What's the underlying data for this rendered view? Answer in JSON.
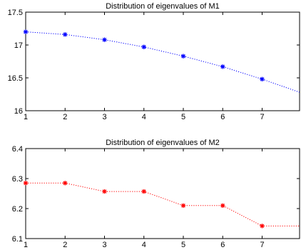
{
  "chart_data": [
    {
      "type": "line",
      "title": "Distribution of eigenvalues of M1",
      "xlabel": "",
      "ylabel": "",
      "xlim": [
        1,
        7.95
      ],
      "ylim": [
        16,
        17.5
      ],
      "x_ticks": [
        1,
        2,
        3,
        4,
        5,
        6,
        7
      ],
      "y_ticks": [
        16,
        16.5,
        17,
        17.5
      ],
      "y_tick_labels": [
        "16",
        "16.5",
        "17",
        "17.5"
      ],
      "grid": false,
      "series": [
        {
          "color": "#0000ff",
          "line_style": "dotted",
          "marker": "*",
          "x": [
            1,
            2,
            3,
            4,
            5,
            6,
            7,
            7.95
          ],
          "y": [
            17.2,
            17.16,
            17.08,
            16.97,
            16.83,
            16.67,
            16.48,
            16.28
          ],
          "marker_count": 7
        }
      ]
    },
    {
      "type": "line",
      "title": "Distribution of eigenvalues of M2",
      "xlabel": "",
      "ylabel": "",
      "xlim": [
        1,
        7.95
      ],
      "ylim": [
        6.1,
        6.4
      ],
      "x_ticks": [
        1,
        2,
        3,
        4,
        5,
        6,
        7
      ],
      "y_ticks": [
        6.1,
        6.2,
        6.3,
        6.4
      ],
      "y_tick_labels": [
        "6.1",
        "6.2",
        "6.3",
        "6.4"
      ],
      "grid": false,
      "series": [
        {
          "color": "#ff0000",
          "line_style": "dotted",
          "marker": "*",
          "x": [
            1,
            2,
            3,
            4,
            5,
            6,
            7,
            7.95
          ],
          "y": [
            6.285,
            6.285,
            6.257,
            6.257,
            6.21,
            6.21,
            6.142,
            6.142
          ],
          "marker_count": 7
        }
      ]
    }
  ]
}
